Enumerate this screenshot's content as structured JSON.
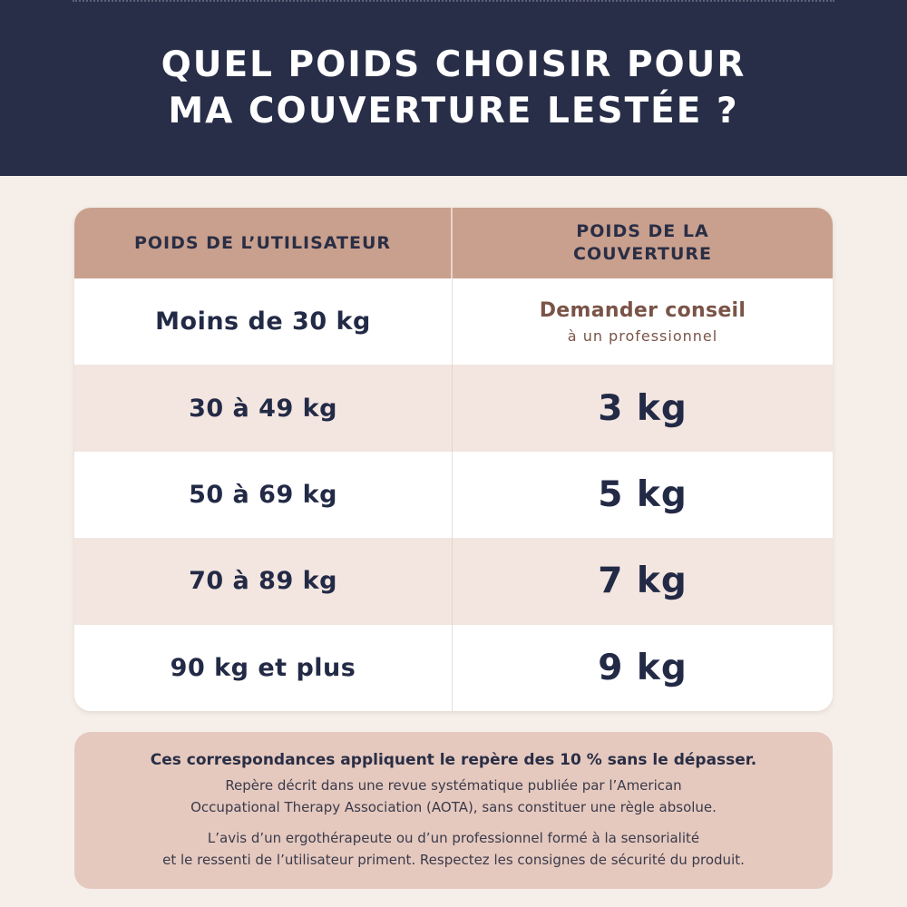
{
  "header": {
    "title_line1": "QUEL POIDS CHOISIR POUR",
    "title_line2": "MA COUVERTURE LESTÉE ?"
  },
  "table": {
    "col1_header": "POIDS DE L’UTILISATEUR",
    "col2_header_line1": "POIDS DE LA",
    "col2_header_line2": "COUVERTURE",
    "rows": [
      {
        "user_weight": "Moins de 30 kg",
        "advice_main": "Demander conseil",
        "advice_sub": "à un professionnel"
      },
      {
        "user_weight": "30 à 49 kg",
        "blanket_weight": "3 kg"
      },
      {
        "user_weight": "50 à 69 kg",
        "blanket_weight": "5 kg"
      },
      {
        "user_weight": "70 à 89 kg",
        "blanket_weight": "7 kg"
      },
      {
        "user_weight": "90 kg et plus",
        "blanket_weight": "9 kg"
      }
    ]
  },
  "note": {
    "bold": "Ces correspondances appliquent le repère des 10 % sans le dépasser.",
    "line1": "Repère décrit dans une revue systématique publiée par l’American",
    "line2": "Occupational Therapy Association (AOTA), sans constituer une règle absolue.",
    "line3": "L’avis d’un ergothérapeute ou d’un professionnel formé à la sensorialité",
    "line4": "et le ressenti de l’utilisateur priment. Respectez les consignes de sécurité du produit."
  },
  "colors": {
    "header_bg": "#282e48",
    "table_header_bg": "#c9a08e",
    "alt_row_bg": "#f3e6e0",
    "note_bg": "#e5c9bf",
    "advice_text": "#7a5448"
  }
}
